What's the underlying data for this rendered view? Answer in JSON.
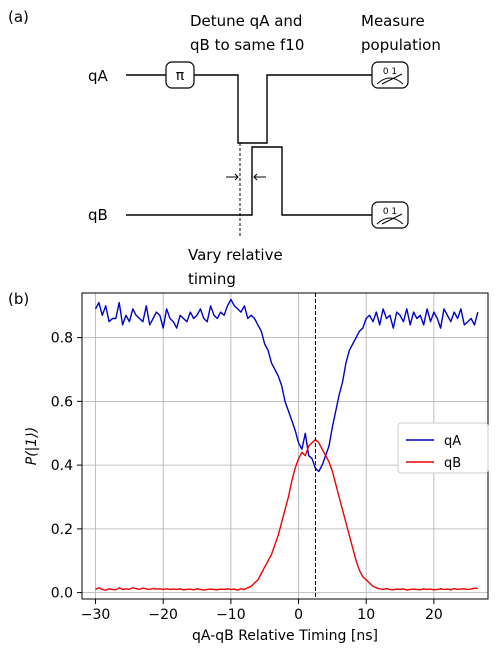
{
  "panel_a": {
    "label": "(a)",
    "qubit_a": "qA",
    "qubit_b": "qB",
    "pi_gate": "π",
    "detune_line1": "Detune qA and",
    "detune_line2": "qB to same f10",
    "measure_line1": "Measure",
    "measure_line2": "population",
    "meter_a_label": "0 1",
    "meter_b_label": "0 1",
    "vary_line1": "Vary relative",
    "vary_line2": "timing"
  },
  "panel_b": {
    "label": "(b)"
  },
  "chart_data": {
    "type": "line",
    "title": "",
    "xlabel": "qA-qB Relative Timing [ns]",
    "ylabel": "P(|1⟩)",
    "xlim": [
      -32,
      28
    ],
    "ylim": [
      -0.02,
      0.94
    ],
    "xticks": [
      -30,
      -20,
      -10,
      0,
      10,
      20
    ],
    "xtick_labels": [
      "−30",
      "−20",
      "−10",
      "0",
      "10",
      "20"
    ],
    "yticks": [
      0.0,
      0.2,
      0.4,
      0.6,
      0.8
    ],
    "ytick_labels": [
      "0.0",
      "0.2",
      "0.4",
      "0.6",
      "0.8"
    ],
    "grid": true,
    "legend_position": "right",
    "vline_x": 2.5,
    "x": [
      -30,
      -29.5,
      -29,
      -28.5,
      -28,
      -27.5,
      -27,
      -26.5,
      -26,
      -25.5,
      -25,
      -24.5,
      -24,
      -23.5,
      -23,
      -22.5,
      -22,
      -21.5,
      -21,
      -20.5,
      -20,
      -19.5,
      -19,
      -18.5,
      -18,
      -17.5,
      -17,
      -16.5,
      -16,
      -15.5,
      -15,
      -14.5,
      -14,
      -13.5,
      -13,
      -12.5,
      -12,
      -11.5,
      -11,
      -10.5,
      -10,
      -9.5,
      -9,
      -8.5,
      -8,
      -7.5,
      -7,
      -6.5,
      -6,
      -5.5,
      -5,
      -4.5,
      -4,
      -3.5,
      -3,
      -2.5,
      -2,
      -1.5,
      -1,
      -0.5,
      0,
      0.5,
      1,
      1.5,
      2,
      2.5,
      3,
      3.5,
      4,
      4.5,
      5,
      5.5,
      6,
      6.5,
      7,
      7.5,
      8,
      8.5,
      9,
      9.5,
      10,
      10.5,
      11,
      11.5,
      12,
      12.5,
      13,
      13.5,
      14,
      14.5,
      15,
      15.5,
      16,
      16.5,
      17,
      17.5,
      18,
      18.5,
      19,
      19.5,
      20,
      20.5,
      21,
      21.5,
      22,
      22.5,
      23,
      23.5,
      24,
      24.5,
      25,
      25.5,
      26,
      26.5
    ],
    "series": [
      {
        "name": "qA",
        "color": "#0000cc",
        "values": [
          0.89,
          0.91,
          0.87,
          0.9,
          0.85,
          0.86,
          0.86,
          0.91,
          0.84,
          0.87,
          0.85,
          0.89,
          0.87,
          0.86,
          0.85,
          0.9,
          0.84,
          0.86,
          0.88,
          0.87,
          0.83,
          0.89,
          0.86,
          0.85,
          0.83,
          0.87,
          0.86,
          0.85,
          0.88,
          0.86,
          0.87,
          0.89,
          0.86,
          0.85,
          0.9,
          0.87,
          0.86,
          0.88,
          0.87,
          0.9,
          0.92,
          0.9,
          0.89,
          0.88,
          0.9,
          0.86,
          0.87,
          0.86,
          0.84,
          0.82,
          0.78,
          0.76,
          0.72,
          0.7,
          0.68,
          0.65,
          0.6,
          0.57,
          0.54,
          0.51,
          0.47,
          0.45,
          0.5,
          0.43,
          0.42,
          0.39,
          0.38,
          0.4,
          0.43,
          0.46,
          0.52,
          0.57,
          0.62,
          0.66,
          0.72,
          0.76,
          0.78,
          0.8,
          0.82,
          0.83,
          0.86,
          0.87,
          0.85,
          0.88,
          0.84,
          0.89,
          0.86,
          0.87,
          0.83,
          0.88,
          0.87,
          0.85,
          0.89,
          0.84,
          0.88,
          0.86,
          0.87,
          0.84,
          0.89,
          0.85,
          0.88,
          0.86,
          0.83,
          0.89,
          0.87,
          0.85,
          0.88,
          0.86,
          0.89,
          0.84,
          0.85,
          0.86,
          0.84,
          0.88
        ]
      },
      {
        "name": "qB",
        "color": "#ee0000",
        "values": [
          0.01,
          0.015,
          0.01,
          0.008,
          0.012,
          0.01,
          0.009,
          0.015,
          0.01,
          0.012,
          0.01,
          0.015,
          0.013,
          0.01,
          0.014,
          0.012,
          0.01,
          0.013,
          0.011,
          0.012,
          0.01,
          0.012,
          0.01,
          0.011,
          0.01,
          0.012,
          0.009,
          0.01,
          0.011,
          0.009,
          0.012,
          0.01,
          0.008,
          0.01,
          0.011,
          0.01,
          0.009,
          0.011,
          0.01,
          0.012,
          0.01,
          0.011,
          0.008,
          0.012,
          0.01,
          0.015,
          0.02,
          0.03,
          0.04,
          0.06,
          0.08,
          0.1,
          0.12,
          0.15,
          0.18,
          0.22,
          0.26,
          0.3,
          0.35,
          0.39,
          0.42,
          0.44,
          0.43,
          0.46,
          0.47,
          0.48,
          0.47,
          0.45,
          0.43,
          0.41,
          0.38,
          0.34,
          0.3,
          0.26,
          0.22,
          0.18,
          0.14,
          0.1,
          0.07,
          0.05,
          0.04,
          0.03,
          0.02,
          0.015,
          0.012,
          0.01,
          0.013,
          0.01,
          0.009,
          0.011,
          0.01,
          0.012,
          0.008,
          0.01,
          0.011,
          0.01,
          0.009,
          0.012,
          0.01,
          0.011,
          0.009,
          0.01,
          0.012,
          0.01,
          0.011,
          0.009,
          0.013,
          0.01,
          0.011,
          0.012,
          0.01,
          0.011,
          0.014,
          0.013
        ]
      }
    ]
  }
}
